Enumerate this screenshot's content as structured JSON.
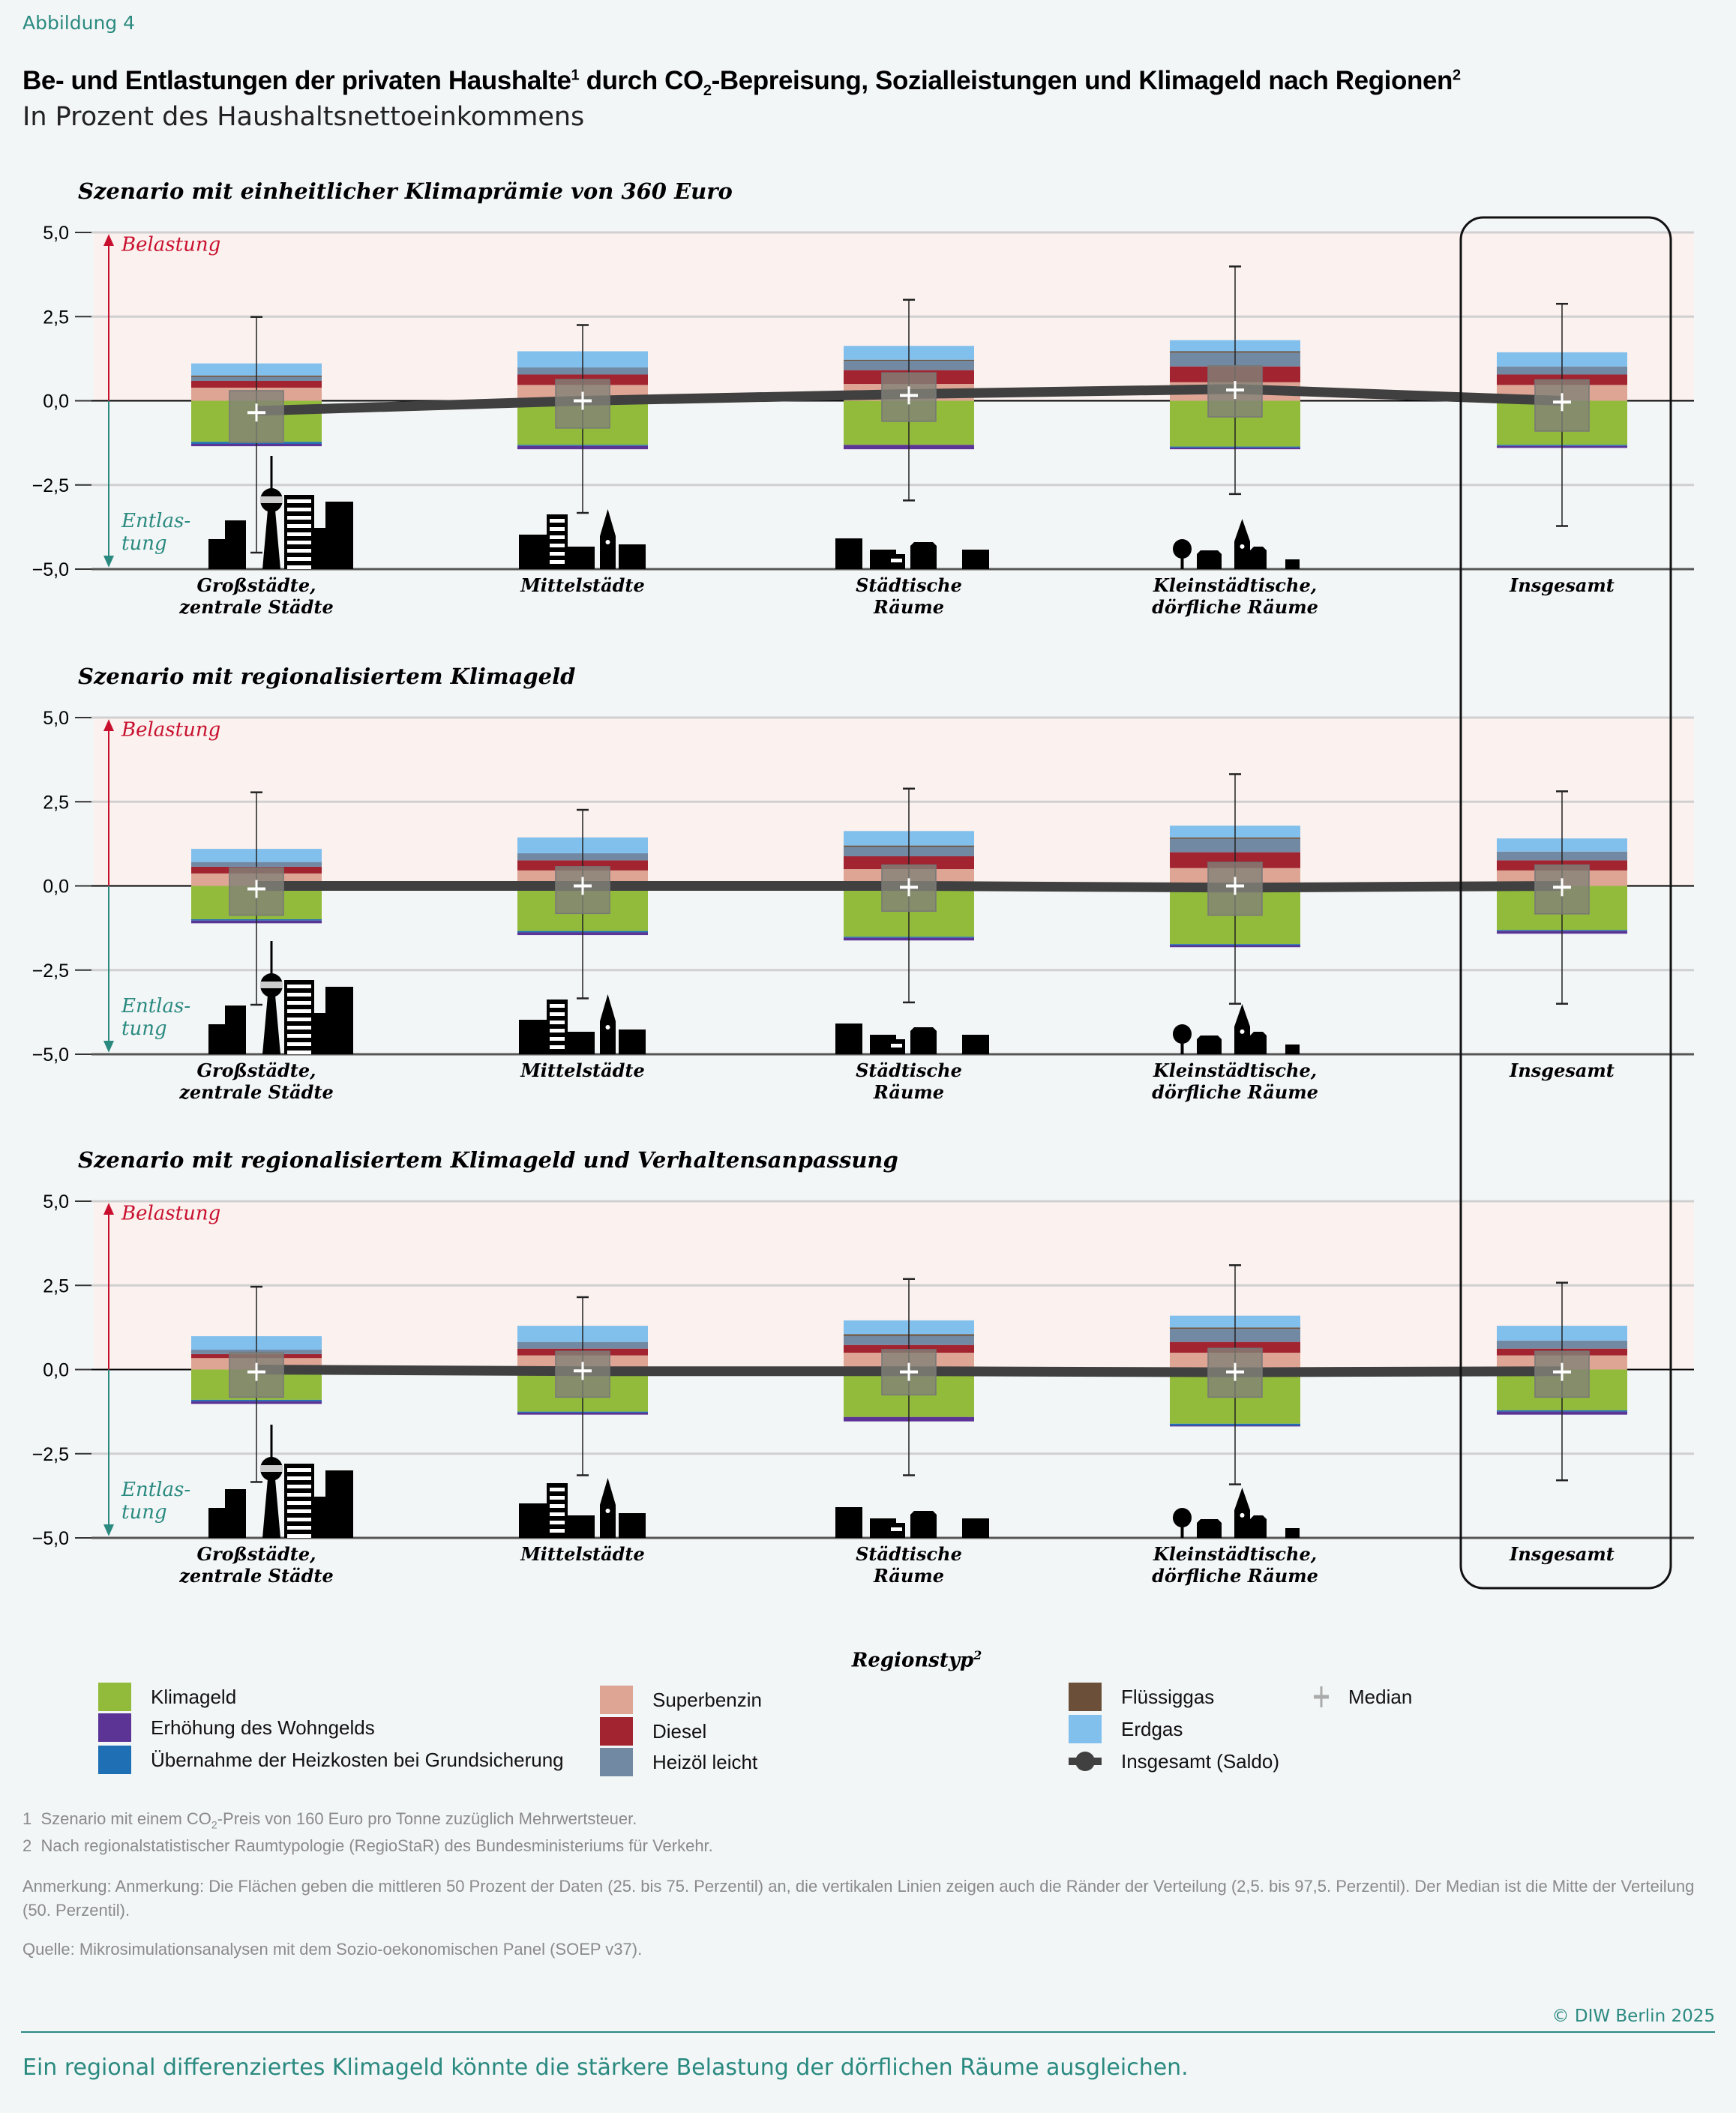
{
  "figure_label": "Abbildung 4",
  "title": {
    "part1": "Be- und Entlastungen der privaten Haushalte",
    "sup1": "1",
    "part2": " durch CO",
    "sub": "2",
    "part3": "-Bepreisung, Sozialleistungen und Klimageld nach Regionen",
    "sup2": "2"
  },
  "subtitle": "In Prozent des Haushaltsnettoeinkommens",
  "colors": {
    "Klimageld": "#92bb3b",
    "Wohngeld": "#5b3495",
    "Heizkosten": "#1f6fb4",
    "Superbenzin": "#dea594",
    "Diesel": "#a12430",
    "Heizoel": "#7189a3",
    "Fluessiggas": "#6b4f38",
    "Erdgas": "#81bfec",
    "Saldo": "#404040",
    "Median": "#ffffff",
    "Belastung": "#c8102e",
    "Entlastung": "#2a8a80",
    "belastung_background": "#fbf1ee"
  },
  "highlighted_category": "Insgesamt",
  "chart_data": [
    {
      "type": "bar",
      "stacked": true,
      "title": "Szenario mit einheitlicher Klimaprämie von 360 Euro",
      "ylim": [
        -5,
        5
      ],
      "yticks": [
        5,
        2.5,
        0,
        -2.5,
        -5
      ],
      "ytick_labels": [
        "5,0",
        "2,5",
        "0,0",
        "−2,5",
        "−5,0"
      ],
      "grid": true,
      "annotation_up": "Belastung",
      "annotation_down": [
        "Entlas-",
        "tung"
      ],
      "categories": [
        [
          "Großstädte,",
          "zentrale Städte"
        ],
        [
          "Mittelstädte"
        ],
        [
          "Städtische",
          "Räume"
        ],
        [
          "Kleinstädtische,",
          "dörfliche Räume"
        ],
        [
          "Insgesamt"
        ]
      ],
      "series": [
        {
          "name": "Superbenzin",
          "key": "Superbenzin",
          "values": [
            0.39,
            0.47,
            0.5,
            0.55,
            0.47
          ]
        },
        {
          "name": "Diesel",
          "key": "Diesel",
          "values": [
            0.2,
            0.31,
            0.41,
            0.47,
            0.31
          ]
        },
        {
          "name": "Heizöl leicht",
          "key": "Heizoel",
          "values": [
            0.12,
            0.21,
            0.28,
            0.41,
            0.24
          ]
        },
        {
          "name": "Flüssiggas",
          "key": "Fluessiggas",
          "values": [
            0.04,
            0.0,
            0.03,
            0.04,
            0.0
          ]
        },
        {
          "name": "Erdgas",
          "key": "Erdgas",
          "values": [
            0.36,
            0.48,
            0.41,
            0.33,
            0.42
          ]
        },
        {
          "name": "Klimageld",
          "key": "Klimageld",
          "values": [
            -1.22,
            -1.31,
            -1.31,
            -1.36,
            -1.31
          ]
        },
        {
          "name": "Übernahme der Heizkosten bei Grundsicherung",
          "key": "Heizkosten",
          "values": [
            -0.06,
            -0.03,
            0.0,
            -0.03,
            -0.03
          ]
        },
        {
          "name": "Erhöhung des Wohngelds",
          "key": "Wohngeld",
          "values": [
            -0.07,
            -0.1,
            -0.13,
            -0.05,
            -0.06
          ]
        }
      ],
      "distribution": {
        "p25": [
          -1.24,
          -0.81,
          -0.61,
          -0.48,
          -0.9
        ],
        "p75": [
          0.3,
          0.63,
          0.83,
          1.04,
          0.62
        ],
        "median": [
          -0.35,
          0.0,
          0.16,
          0.32,
          -0.04
        ],
        "p2_5": [
          -4.51,
          -3.33,
          -2.96,
          -2.77,
          -3.72
        ],
        "p97_5": [
          2.49,
          2.25,
          3.0,
          3.99,
          2.88
        ]
      },
      "saldo": [
        -0.3,
        0.0,
        0.2,
        0.35,
        0.0
      ]
    },
    {
      "type": "bar",
      "stacked": true,
      "title": "Szenario mit regionalisiertem Klimageld",
      "ylim": [
        -5,
        5
      ],
      "yticks": [
        5,
        2.5,
        0,
        -2.5,
        -5
      ],
      "ytick_labels": [
        "5,0",
        "2,5",
        "0,0",
        "−2,5",
        "−5,0"
      ],
      "grid": true,
      "annotation_up": "Belastung",
      "annotation_down": [
        "Entlas-",
        "tung"
      ],
      "categories": [
        [
          "Großstädte,",
          "zentrale Städte"
        ],
        [
          "Mittelstädte"
        ],
        [
          "Städtische",
          "Räume"
        ],
        [
          "Kleinstädtische,",
          "dörfliche Räume"
        ],
        [
          "Insgesamt"
        ]
      ],
      "series": [
        {
          "name": "Superbenzin",
          "key": "Superbenzin",
          "values": [
            0.37,
            0.46,
            0.5,
            0.53,
            0.46
          ]
        },
        {
          "name": "Diesel",
          "key": "Diesel",
          "values": [
            0.2,
            0.3,
            0.38,
            0.47,
            0.3
          ]
        },
        {
          "name": "Heizöl leicht",
          "key": "Heizoel",
          "values": [
            0.14,
            0.21,
            0.28,
            0.4,
            0.26
          ]
        },
        {
          "name": "Flüssiggas",
          "key": "Fluessiggas",
          "values": [
            0.0,
            0.0,
            0.04,
            0.04,
            0.0
          ]
        },
        {
          "name": "Erdgas",
          "key": "Erdgas",
          "values": [
            0.39,
            0.47,
            0.43,
            0.35,
            0.39
          ]
        },
        {
          "name": "Klimageld",
          "key": "Klimageld",
          "values": [
            -0.99,
            -1.34,
            -1.51,
            -1.73,
            -1.31
          ]
        },
        {
          "name": "Übernahme der Heizkosten bei Grundsicherung",
          "key": "Heizkosten",
          "values": [
            -0.04,
            -0.04,
            -0.03,
            -0.03,
            -0.03
          ]
        },
        {
          "name": "Erhöhung des Wohngelds",
          "key": "Wohngeld",
          "values": [
            -0.08,
            -0.08,
            -0.08,
            -0.06,
            -0.08
          ]
        }
      ],
      "distribution": {
        "p25": [
          -0.87,
          -0.82,
          -0.75,
          -0.87,
          -0.83
        ],
        "p75": [
          0.54,
          0.57,
          0.62,
          0.7,
          0.62
        ],
        "median": [
          -0.09,
          0.0,
          -0.04,
          0.0,
          -0.04
        ],
        "p2_5": [
          -3.53,
          -3.34,
          -3.46,
          -3.5,
          -3.5
        ],
        "p97_5": [
          2.78,
          2.26,
          2.89,
          3.32,
          2.81
        ]
      },
      "saldo": [
        0.0,
        0.0,
        0.0,
        -0.05,
        0.0
      ]
    },
    {
      "type": "bar",
      "stacked": true,
      "title": "Szenario mit regionalisiertem Klimageld und Verhaltensanpassung",
      "ylim": [
        -5,
        5
      ],
      "yticks": [
        5,
        2.5,
        0,
        -2.5,
        -5
      ],
      "ytick_labels": [
        "5,0",
        "2,5",
        "0,0",
        "−2,5",
        "−5,0"
      ],
      "grid": true,
      "annotation_up": "Belastung",
      "annotation_down": [
        "Entlas-",
        "tung"
      ],
      "categories": [
        [
          "Großstädte,",
          "zentrale Städte"
        ],
        [
          "Mittelstädte"
        ],
        [
          "Städtische",
          "Räume"
        ],
        [
          "Kleinstädtische,",
          "dörfliche Räume"
        ],
        [
          "Insgesamt"
        ]
      ],
      "series": [
        {
          "name": "Superbenzin",
          "key": "Superbenzin",
          "values": [
            0.34,
            0.42,
            0.5,
            0.5,
            0.42
          ]
        },
        {
          "name": "Diesel",
          "key": "Diesel",
          "values": [
            0.12,
            0.2,
            0.23,
            0.32,
            0.2
          ]
        },
        {
          "name": "Heizöl leicht",
          "key": "Heizoel",
          "values": [
            0.13,
            0.2,
            0.27,
            0.39,
            0.24
          ]
        },
        {
          "name": "Flüssiggas",
          "key": "Fluessiggas",
          "values": [
            0.0,
            0.0,
            0.05,
            0.04,
            0.0
          ]
        },
        {
          "name": "Erdgas",
          "key": "Erdgas",
          "values": [
            0.4,
            0.48,
            0.41,
            0.35,
            0.44
          ]
        },
        {
          "name": "Klimageld",
          "key": "Klimageld",
          "values": [
            -0.9,
            -1.25,
            -1.41,
            -1.61,
            -1.21
          ]
        },
        {
          "name": "Übernahme der Heizkosten bei Grundsicherung",
          "key": "Heizkosten",
          "values": [
            -0.04,
            -0.03,
            0.0,
            -0.05,
            -0.04
          ]
        },
        {
          "name": "Erhöhung des Wohngelds",
          "key": "Wohngeld",
          "values": [
            -0.08,
            -0.06,
            -0.13,
            -0.03,
            -0.09
          ]
        }
      ],
      "distribution": {
        "p25": [
          -0.82,
          -0.82,
          -0.75,
          -0.82,
          -0.82
        ],
        "p75": [
          0.5,
          0.54,
          0.59,
          0.63,
          0.54
        ],
        "median": [
          -0.07,
          -0.04,
          -0.07,
          -0.07,
          -0.07
        ],
        "p2_5": [
          -3.34,
          -3.14,
          -3.14,
          -3.41,
          -3.29
        ],
        "p97_5": [
          2.46,
          2.15,
          2.69,
          3.1,
          2.58
        ]
      },
      "saldo": [
        0.0,
        -0.05,
        -0.05,
        -0.08,
        -0.05
      ]
    }
  ],
  "legend": {
    "title": "Regionstyp",
    "title_sup": "2",
    "items": [
      {
        "label": "Klimageld",
        "key": "Klimageld"
      },
      {
        "label": "Erhöhung des Wohngelds",
        "key": "Wohngeld"
      },
      {
        "label": "Übernahme der Heizkosten bei Grundsicherung",
        "key": "Heizkosten"
      },
      {
        "label": "Superbenzin",
        "key": "Superbenzin"
      },
      {
        "label": "Diesel",
        "key": "Diesel"
      },
      {
        "label": "Heizöl leicht",
        "key": "Heizoel"
      },
      {
        "label": "Flüssiggas",
        "key": "Fluessiggas"
      },
      {
        "label": "Erdgas",
        "key": "Erdgas"
      },
      {
        "label": "Insgesamt (Saldo)",
        "key": "Saldo"
      },
      {
        "label": "Median",
        "key": "Median"
      }
    ]
  },
  "footnotes": {
    "f1_num": "1",
    "f1_a": "Szenario mit einem CO",
    "f1_sub": "2",
    "f1_b": "-Preis von 160 Euro pro Tonne zuzüglich Mehrwertsteuer.",
    "f2_num": "2",
    "f2": "Nach regionalstatistischer Raumtypologie (RegioStaR) des Bundesministeriums für Verkehr.",
    "note": "Anmerkung: Anmerkung: Die Flächen geben die mittleren 50 Prozent der Daten (25. bis 75. Perzentil) an, die vertikalen Linien zeigen auch die Ränder der Verteilung (2,5. bis 97,5. Perzentil). Der Median ist die Mitte der Verteilung (50. Perzentil).",
    "source": "Quelle: Mikrosimulationsanalysen mit dem Sozio-oekonomischen Panel (SOEP v37)."
  },
  "copyright": "© DIW Berlin 2025",
  "takeaway": "Ein regional differenziertes Klimageld könnte die stärkere Belastung der dörflichen Räume ausgleichen."
}
